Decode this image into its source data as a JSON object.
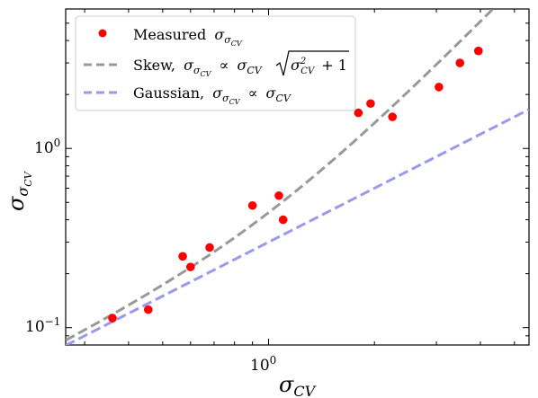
{
  "chart_data": {
    "type": "scatter",
    "xscale": "log",
    "yscale": "log",
    "xlim": [
      0.265,
      5.5
    ],
    "ylim": [
      0.08,
      6.0
    ],
    "grid": false,
    "legend_position": "top-left",
    "xlabel": "σCV",
    "ylabel": "σσCV",
    "x_tick_labels": [
      {
        "value": 1,
        "label": "10⁰"
      }
    ],
    "y_tick_labels": [
      {
        "value": 0.1,
        "label": "10⁻¹"
      },
      {
        "value": 1,
        "label": "10⁰"
      }
    ],
    "series": [
      {
        "name": "Measured σσCV",
        "kind": "points",
        "color": "#ff0000",
        "points": [
          {
            "x": 0.36,
            "y": 0.113
          },
          {
            "x": 0.455,
            "y": 0.126
          },
          {
            "x": 0.57,
            "y": 0.25
          },
          {
            "x": 0.6,
            "y": 0.218
          },
          {
            "x": 0.68,
            "y": 0.28
          },
          {
            "x": 0.9,
            "y": 0.48
          },
          {
            "x": 1.07,
            "y": 0.545
          },
          {
            "x": 1.1,
            "y": 0.4
          },
          {
            "x": 1.8,
            "y": 1.58
          },
          {
            "x": 1.95,
            "y": 1.78
          },
          {
            "x": 2.25,
            "y": 1.5
          },
          {
            "x": 3.05,
            "y": 2.2
          },
          {
            "x": 3.5,
            "y": 3.0
          },
          {
            "x": 3.95,
            "y": 3.5
          }
        ]
      },
      {
        "name": "Skew, σσCV ∝ σCV √(σCV² + 1)",
        "kind": "dashed-line",
        "color": "#999999",
        "formula": "0.31 * x * sqrt(x^2 + 1)"
      },
      {
        "name": "Gaussian, σσCV ∝ σCV",
        "kind": "dashed-line",
        "color": "#9999ee",
        "formula": "0.30 * x"
      }
    ]
  },
  "legend": {
    "measured": {
      "label": "Measured",
      "sym": "σ",
      "sub": "σ",
      "subsub": "CV"
    },
    "skew": {
      "label": "Skew,",
      "sym": "σ",
      "sub": "σ",
      "subsub": "CV",
      "prop": "∝",
      "rhs_sym": "σ",
      "rhs_sub": "CV",
      "rad_sym": "σ",
      "rad_sup": "2",
      "rad_sub": "CV",
      "rad_tail": "+ 1"
    },
    "gaussian": {
      "label": "Gaussian,",
      "sym": "σ",
      "sub": "σ",
      "subsub": "CV",
      "prop": "∝",
      "rhs_sym": "σ",
      "rhs_sub": "CV"
    }
  },
  "axis_text": {
    "x_sym": "σ",
    "x_sub": "CV",
    "y_sym": "σ",
    "y_sub": "σ",
    "y_subsub": "CV",
    "x_tick_base": "10",
    "x_tick_exp": "0",
    "y_tick_base_1": "10",
    "y_tick_exp_1": "−1",
    "y_tick_base_2": "10",
    "y_tick_exp_2": "0"
  }
}
